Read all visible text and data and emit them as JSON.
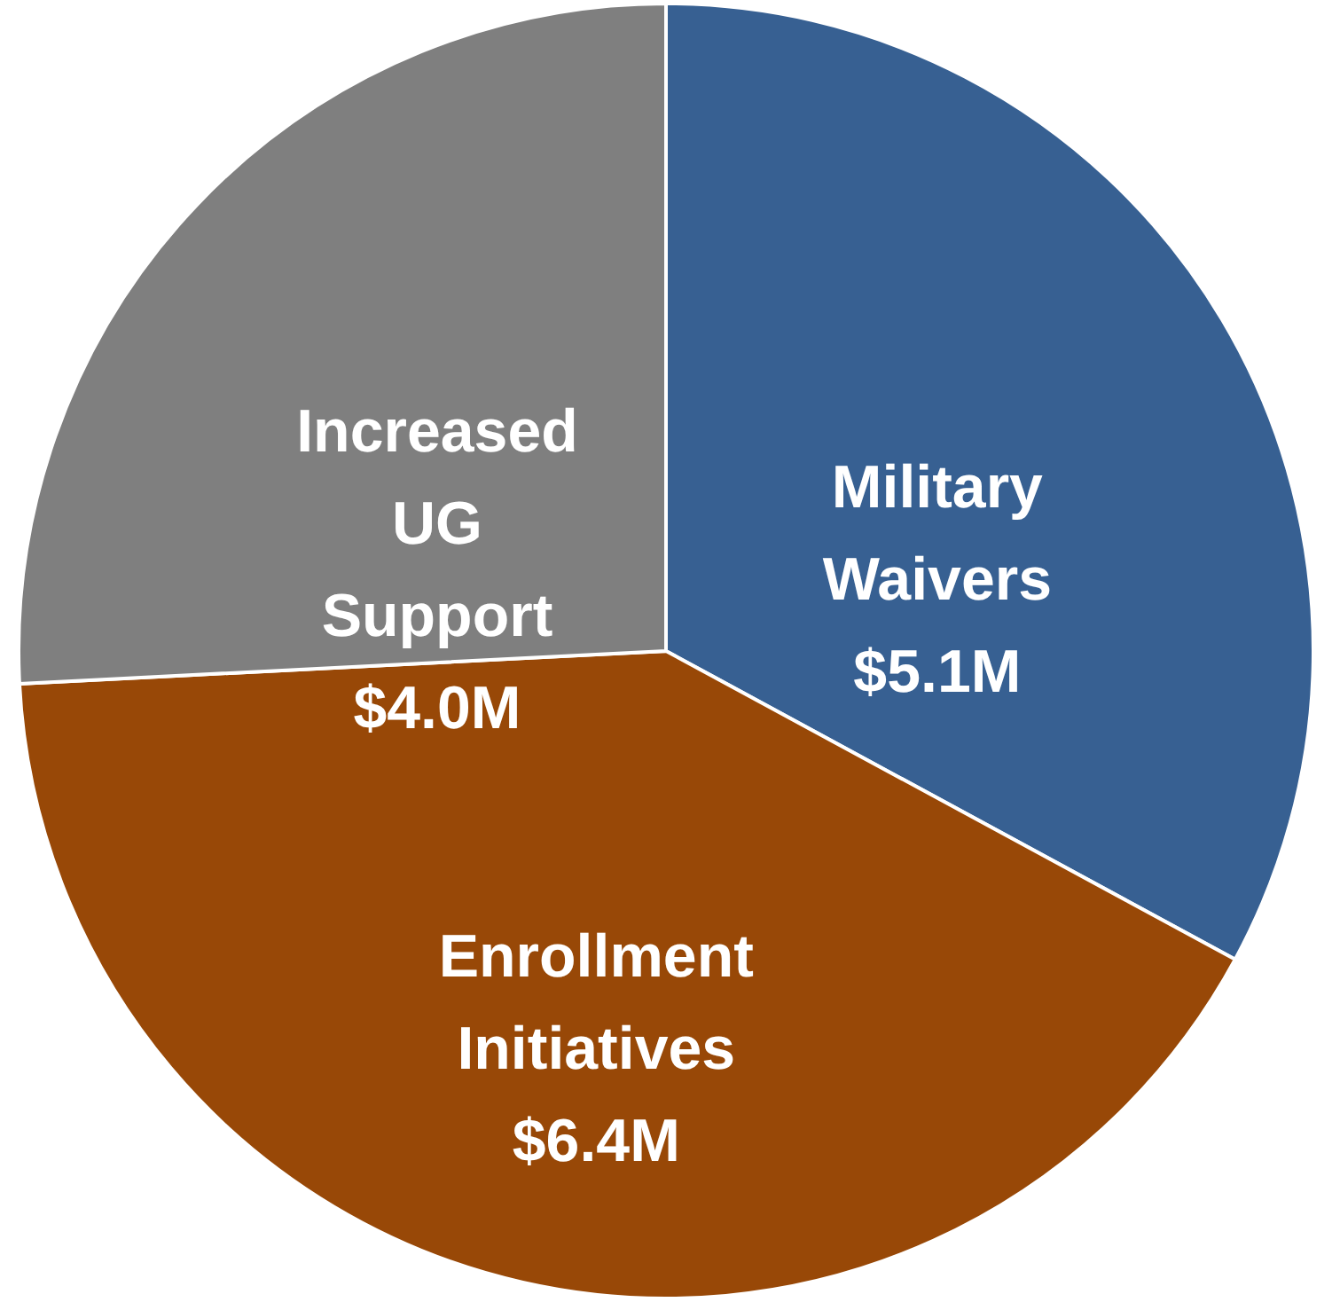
{
  "chart_data": {
    "type": "pie",
    "categories": [
      "Military Waivers",
      "Enrollment Initiatives",
      "Increased UG Support"
    ],
    "values": [
      5.1,
      6.4,
      4.0
    ],
    "colors": [
      "#376092",
      "#984807",
      "#7f7f7f"
    ],
    "value_labels": [
      "$5.1M",
      "$6.4M",
      "$4.0M"
    ]
  }
}
